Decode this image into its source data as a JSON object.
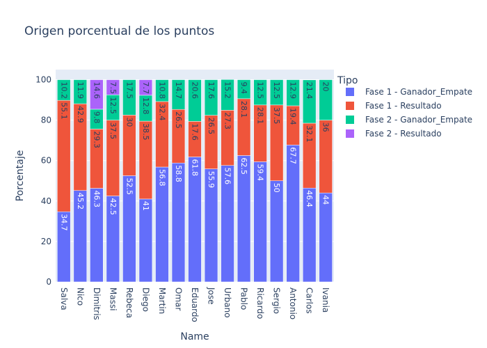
{
  "chart_data": {
    "type": "bar",
    "stacked": true,
    "title": "Origen porcentual de los puntos",
    "xlabel": "Name",
    "ylabel": "Porcentaje",
    "ylim": [
      0,
      105
    ],
    "yticks": [
      0,
      20,
      40,
      60,
      80,
      100
    ],
    "grid": true,
    "legend_title": "Tipo",
    "legend_position": "right",
    "categories": [
      "Salva",
      "Nico",
      "Dimitris",
      "Massi",
      "Rebeca",
      "Diego",
      "Martin",
      "Omar",
      "Eduardo",
      "Jose",
      "Urbano",
      "Pablo",
      "Ricardo",
      "Sergio",
      "Antonio",
      "Carlos",
      "Ivania"
    ],
    "series": [
      {
        "name": "Fase 1 - Ganador_Empate",
        "color": "#636efa",
        "label_color": "#ffffff",
        "values": [
          34.7,
          45.2,
          46.3,
          42.5,
          52.5,
          41,
          56.8,
          58.8,
          61.8,
          55.9,
          57.6,
          62.5,
          59.4,
          50,
          67.7,
          46.4,
          44
        ]
      },
      {
        "name": "Fase 1 - Resultado",
        "color": "#ef553b",
        "label_color": "#2a3f5f",
        "values": [
          55.1,
          42.9,
          29.3,
          37.5,
          30,
          38.5,
          32.4,
          26.5,
          17.6,
          26.5,
          27.3,
          28.1,
          28.1,
          37.5,
          19.4,
          32.1,
          36
        ]
      },
      {
        "name": "Fase 2 - Ganador_Empate",
        "color": "#00cc96",
        "label_color": "#2a3f5f",
        "values": [
          10.2,
          11.9,
          9.8,
          12.5,
          17.5,
          12.8,
          10.8,
          14.7,
          20.6,
          17.6,
          15.2,
          9.4,
          12.5,
          12.5,
          12.9,
          21.4,
          20
        ]
      },
      {
        "name": "Fase 2 - Resultado",
        "color": "#ab63fa",
        "label_color": "#2a3f5f",
        "values": [
          null,
          null,
          14.6,
          7.5,
          null,
          7.7,
          null,
          null,
          null,
          null,
          null,
          null,
          null,
          null,
          null,
          null,
          null
        ]
      }
    ],
    "colors": {
      "plot_background": "#e5ecf6",
      "text": "#2a3f5f"
    }
  }
}
